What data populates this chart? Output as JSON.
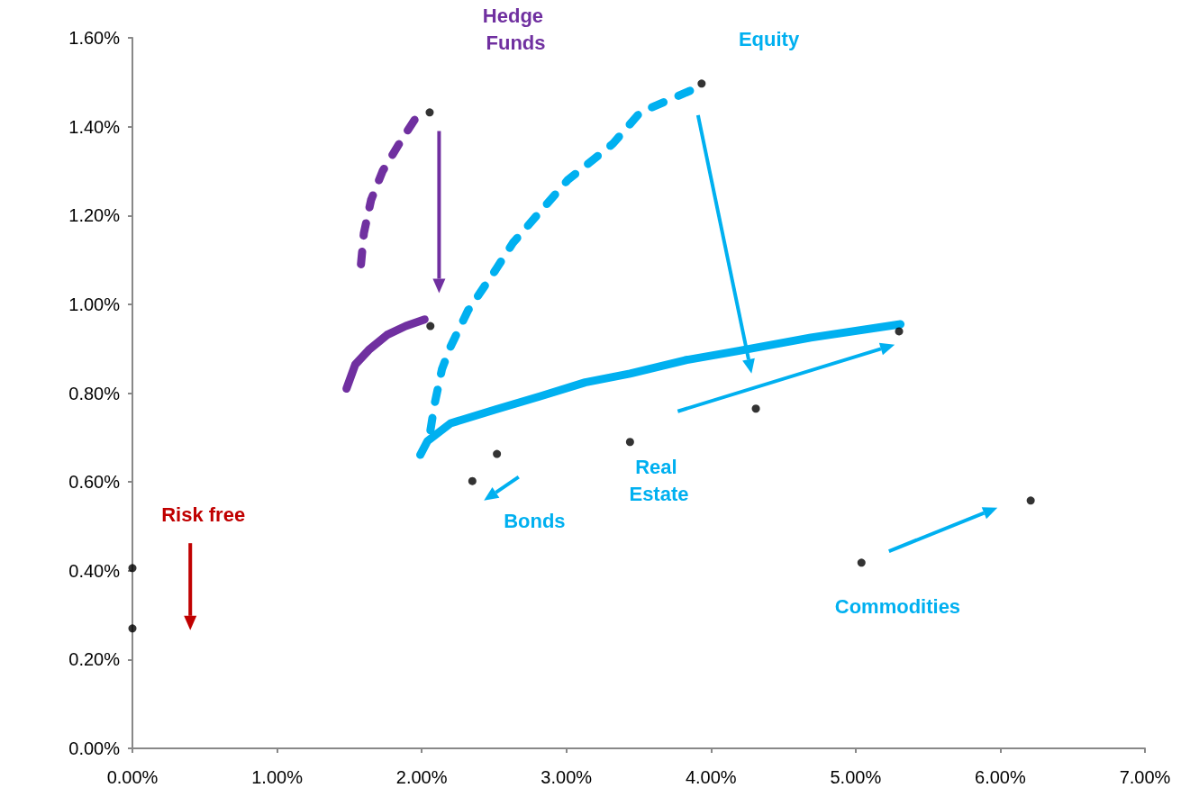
{
  "chart_data": {
    "type": "scatter",
    "xlim": [
      0,
      7
    ],
    "ylim": [
      0,
      1.6
    ],
    "xticks": [
      {
        "value": 0,
        "label": "0.00%"
      },
      {
        "value": 1,
        "label": "1.00%"
      },
      {
        "value": 2,
        "label": "2.00%"
      },
      {
        "value": 3,
        "label": "3.00%"
      },
      {
        "value": 4,
        "label": "4.00%"
      },
      {
        "value": 5,
        "label": "5.00%"
      },
      {
        "value": 6,
        "label": "6.00%"
      },
      {
        "value": 7,
        "label": "7.00%"
      }
    ],
    "yticks": [
      {
        "value": 0,
        "label": "0.00%"
      },
      {
        "value": 0.2,
        "label": "0.20%"
      },
      {
        "value": 0.4,
        "label": "0.40%"
      },
      {
        "value": 0.6,
        "label": "0.60%"
      },
      {
        "value": 0.8,
        "label": "0.80%"
      },
      {
        "value": 1,
        "label": "1.00%"
      },
      {
        "value": 1.2,
        "label": "1.20%"
      },
      {
        "value": 1.4,
        "label": "1.40%"
      },
      {
        "value": 1.6,
        "label": "1.60%"
      }
    ],
    "grid": false,
    "series": [
      {
        "type": "line",
        "color": "#7030a0",
        "line_style": "dashed",
        "marker": "none",
        "x": [
          1.58,
          1.6,
          1.65,
          1.73,
          1.86,
          1.98
        ],
        "values": [
          1.09,
          1.16,
          1.235,
          1.3,
          1.37,
          1.43
        ]
      },
      {
        "type": "line",
        "color": "#7030a0",
        "line_style": "solid",
        "marker": "none",
        "x": [
          1.48,
          1.54,
          1.64,
          1.76,
          1.89,
          2.02
        ],
        "values": [
          0.81,
          0.864,
          0.899,
          0.931,
          0.951,
          0.966
        ]
      },
      {
        "type": "line",
        "color": "#00b0f0",
        "line_style": "dashed",
        "marker": "none",
        "x": [
          2.06,
          2.09,
          2.14,
          2.2,
          2.32,
          2.51,
          2.63,
          2.82,
          3.01,
          3.32,
          3.51,
          3.87
        ],
        "values": [
          0.716,
          0.777,
          0.854,
          0.905,
          0.986,
          1.077,
          1.138,
          1.209,
          1.28,
          1.361,
          1.432,
          1.483
        ]
      },
      {
        "type": "line",
        "color": "#00b0f0",
        "line_style": "solid",
        "marker": "none",
        "x": [
          1.99,
          2.04,
          2.2,
          2.51,
          2.82,
          3.13,
          3.44,
          3.82,
          4.19,
          4.69,
          5.31
        ],
        "values": [
          0.661,
          0.692,
          0.732,
          0.763,
          0.793,
          0.824,
          0.844,
          0.874,
          0.895,
          0.925,
          0.955
        ]
      },
      {
        "color": "#000000",
        "marker": "circle",
        "x": [
          0,
          0,
          2.055,
          2.06,
          3.935,
          5.3,
          4.31,
          3.44,
          2.52,
          2.35,
          5.04,
          6.21
        ],
        "values": [
          0.406,
          0.27,
          1.432,
          0.951,
          1.497,
          0.939,
          0.765,
          0.69,
          0.663,
          0.602,
          0.418,
          0.558
        ]
      }
    ],
    "annotations": [
      "Hedge Funds",
      "Equity",
      "Risk free",
      "Bonds",
      "Real Estate",
      "Commodities"
    ]
  }
}
